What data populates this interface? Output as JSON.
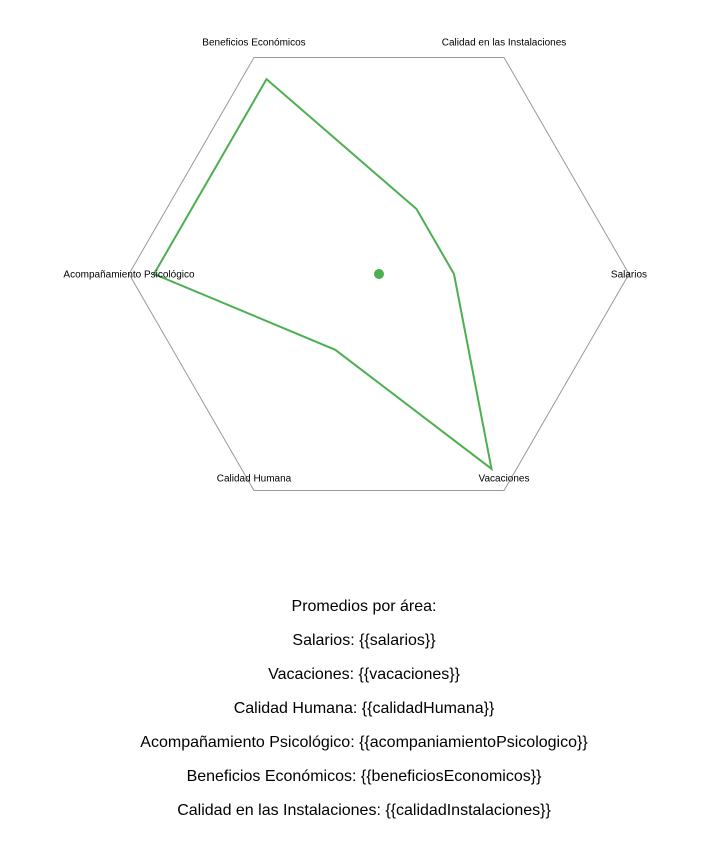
{
  "chart_data": {
    "type": "radar",
    "categories": [
      "Salarios",
      "Vacaciones",
      "Calidad Humana",
      "Acompañamiento Psicológico",
      "Beneficios Económicos",
      "Calidad en las Instalaciones"
    ],
    "values": [
      0.3,
      0.9,
      0.35,
      0.9,
      0.9,
      0.3
    ],
    "range": [
      0,
      1
    ],
    "grid": true,
    "legend": "none",
    "series_color": "#4caf50",
    "grid_color": "#999999"
  },
  "summary": {
    "heading": "Promedios por área:",
    "lines": [
      "Salarios: {{salarios}}",
      "Vacaciones: {{vacaciones}}",
      "Calidad Humana: {{calidadHumana}}",
      "Acompañamiento Psicológico: {{acompaniamientoPsicologico}}",
      "Beneficios Económicos: {{beneficiosEconomicos}}",
      "Calidad en las Instalaciones: {{calidadInstalaciones}}"
    ]
  }
}
